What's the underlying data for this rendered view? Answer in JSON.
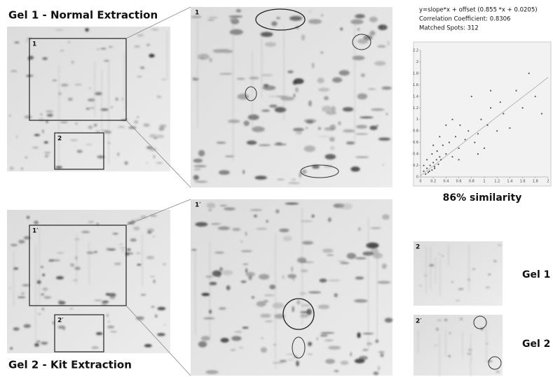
{
  "gel1": {
    "title": "Gel 1 - Normal Extraction",
    "box1": "1",
    "box2": "2"
  },
  "zoom1": {
    "label": "1"
  },
  "stats": {
    "equation": "y=slope*x + offset (0.855 *x + 0.0205)",
    "correlation": "Correlation Coefficient: 0.8306",
    "matched": "Matched Spots: 312",
    "similarity": "86% similarity"
  },
  "chart_data": {
    "type": "scatter",
    "x": [
      0.05,
      0.08,
      0.1,
      0.12,
      0.15,
      0.18,
      0.2,
      0.22,
      0.25,
      0.28,
      0.3,
      0.05,
      0.1,
      0.14,
      0.18,
      0.22,
      0.26,
      0.32,
      0.35,
      0.4,
      0.45,
      0.5,
      0.55,
      0.6,
      0.62,
      0.7,
      0.75,
      0.8,
      0.85,
      0.9,
      0.95,
      1.0,
      1.05,
      1.1,
      1.2,
      1.25,
      1.3,
      1.4,
      1.5,
      1.6,
      1.7,
      1.8,
      1.9,
      0.4,
      0.6,
      0.3,
      0.5,
      0.9,
      1.1,
      0.2
    ],
    "values": [
      0.1,
      0.05,
      0.15,
      0.08,
      0.2,
      0.12,
      0.25,
      0.18,
      0.3,
      0.22,
      0.35,
      0.2,
      0.3,
      0.1,
      0.4,
      0.15,
      0.45,
      0.3,
      0.55,
      0.4,
      0.6,
      0.35,
      0.7,
      0.5,
      0.9,
      0.65,
      0.8,
      1.4,
      0.6,
      0.75,
      1.0,
      0.5,
      0.9,
      1.2,
      0.8,
      1.3,
      1.1,
      0.85,
      1.5,
      1.2,
      1.8,
      1.4,
      1.1,
      0.9,
      0.3,
      0.7,
      1.0,
      0.4,
      1.5,
      0.55
    ],
    "xlim": [
      0,
      2
    ],
    "ylim": [
      0,
      2.2
    ],
    "xticks": [
      0,
      0.2,
      0.4,
      0.6,
      0.8,
      1,
      1.2,
      1.4,
      1.6,
      1.8,
      2
    ],
    "yticks": [
      0,
      0.2,
      0.4,
      0.6,
      0.8,
      1,
      1.2,
      1.4,
      1.6,
      1.8,
      2,
      2.2
    ],
    "fit_line": {
      "slope": 0.855,
      "offset": 0.0205
    },
    "color": "#555555"
  },
  "gel2": {
    "title": "Gel 2 - Kit Extraction",
    "box1": "1′",
    "box2": "2′"
  },
  "zoom2": {
    "label": "1′"
  },
  "insets": {
    "top_label": "2",
    "top_name": "Gel 1",
    "bottom_label": "2′",
    "bottom_name": "Gel 2"
  }
}
